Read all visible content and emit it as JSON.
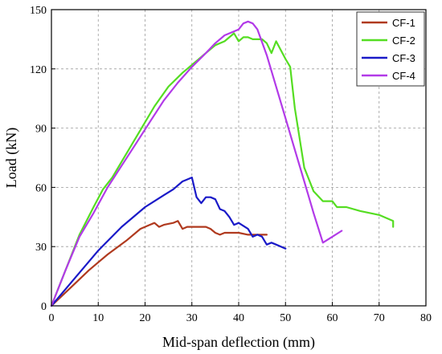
{
  "chart_data": {
    "type": "line",
    "xlabel": "Mid-span deflection (mm)",
    "ylabel": "Load (kN)",
    "xlim": [
      0,
      80
    ],
    "ylim": [
      0,
      150
    ],
    "xticks": [
      0,
      10,
      20,
      30,
      40,
      50,
      60,
      70,
      80
    ],
    "yticks": [
      0,
      30,
      60,
      90,
      120,
      150
    ],
    "grid": true,
    "legend_position": "top-right",
    "series": [
      {
        "name": "CF-1",
        "color": "#b03a1f",
        "x": [
          0,
          4,
          8,
          12,
          16,
          19,
          21,
          22,
          23,
          24,
          26,
          27,
          28,
          29,
          31,
          33,
          34,
          35,
          36,
          37,
          38,
          40,
          42,
          44,
          46
        ],
        "y": [
          0,
          9,
          18,
          26,
          33,
          39,
          41,
          42,
          40,
          41,
          42,
          43,
          39,
          40,
          40,
          40,
          39,
          37,
          36,
          37,
          37,
          37,
          36,
          36,
          36
        ]
      },
      {
        "name": "CF-2",
        "color": "#55dd22",
        "x": [
          0,
          3,
          6,
          9,
          11,
          13,
          16,
          19,
          22,
          25,
          28,
          31,
          33,
          35,
          37,
          38,
          39,
          40,
          41,
          42,
          43,
          45,
          46,
          47,
          48,
          50,
          51,
          52,
          54,
          56,
          58,
          60,
          61,
          63,
          66,
          70,
          73,
          73
        ],
        "y": [
          0,
          18,
          36,
          50,
          59,
          65,
          77,
          89,
          101,
          111,
          118,
          124,
          128,
          132,
          134,
          136,
          138,
          134,
          136,
          136,
          135,
          135,
          133,
          128,
          134,
          125,
          121,
          100,
          70,
          58,
          53,
          53,
          50,
          50,
          48,
          46,
          43,
          40
        ]
      },
      {
        "name": "CF-3",
        "color": "#1a1ac8",
        "x": [
          0,
          5,
          10,
          15,
          20,
          24,
          26,
          28,
          29,
          30,
          30.5,
          31,
          32,
          33,
          34,
          35,
          36,
          37,
          38,
          39,
          40,
          42,
          43,
          44,
          45,
          46,
          47,
          48,
          50
        ],
        "y": [
          0,
          14,
          28,
          40,
          50,
          56,
          59,
          63,
          64,
          65,
          60,
          55,
          52,
          55,
          55,
          54,
          49,
          48,
          45,
          41,
          42,
          39,
          35,
          36,
          35,
          31,
          32,
          31,
          29
        ]
      },
      {
        "name": "CF-4",
        "color": "#b23ae8",
        "x": [
          0,
          3,
          6,
          9,
          12,
          15,
          18,
          21,
          24,
          27,
          30,
          33,
          35,
          37,
          39,
          40,
          41,
          42,
          43,
          44,
          46,
          48,
          50,
          52,
          54,
          56,
          58,
          60,
          62
        ],
        "y": [
          0,
          18,
          35,
          47,
          60,
          71,
          82,
          93,
          104,
          113,
          121,
          128,
          133,
          137,
          139,
          140,
          143,
          144,
          143,
          140,
          127,
          111,
          95,
          79,
          63,
          47,
          32,
          35,
          38
        ]
      }
    ]
  }
}
